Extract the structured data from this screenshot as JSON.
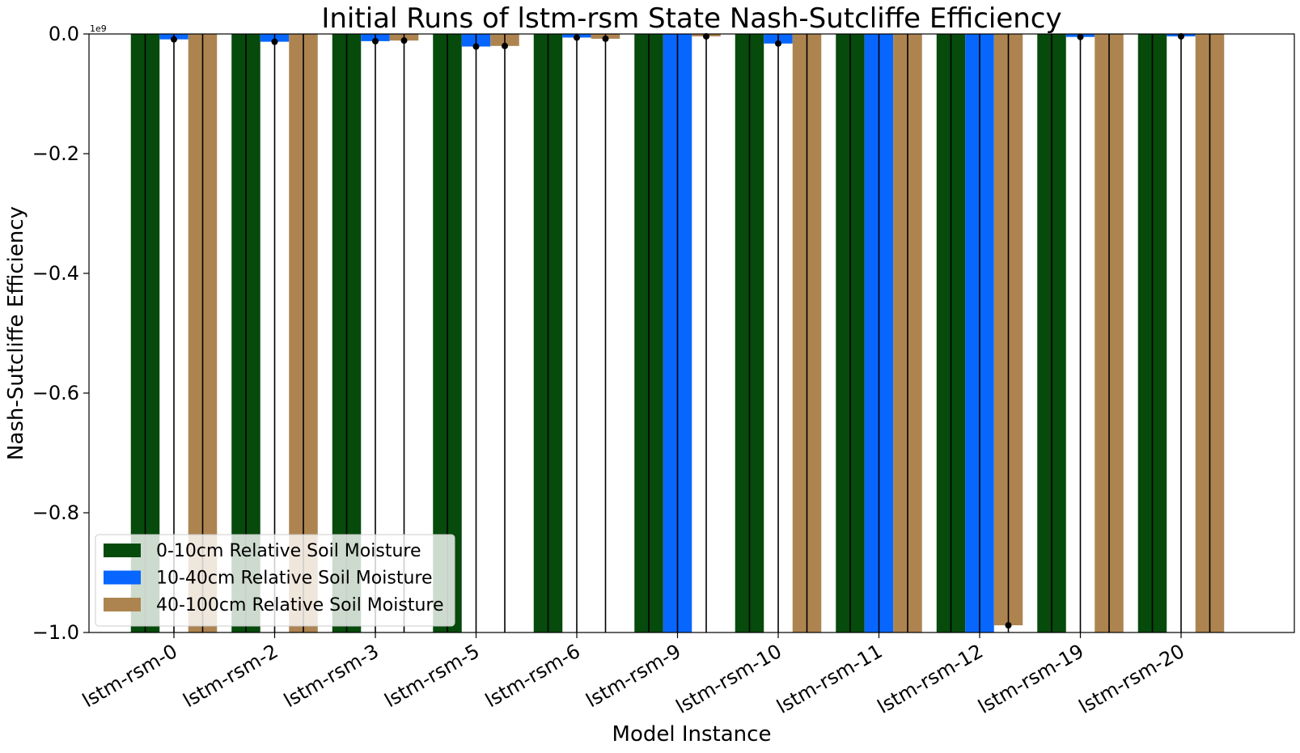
{
  "chart_data": {
    "type": "bar",
    "title": "Initial Runs of lstm-rsm State Nash-Sutcliffe Efficiency",
    "xlabel": "Model Instance",
    "ylabel": "Nash-Sutcliffe Efficiency",
    "y_offset_label": "1e9",
    "ylim": [
      -1.0,
      0.0
    ],
    "yticks": [
      "0.0",
      "−0.2",
      "−0.4",
      "−0.6",
      "−0.8",
      "−1.0"
    ],
    "ytick_values": [
      0.0,
      -0.2,
      -0.4,
      -0.6,
      -0.8,
      -1.0
    ],
    "categories": [
      "lstm-rsm-0",
      "lstm-rsm-2",
      "lstm-rsm-3",
      "lstm-rsm-5",
      "lstm-rsm-6",
      "lstm-rsm-9",
      "lstm-rsm-10",
      "lstm-rsm-11",
      "lstm-rsm-12",
      "lstm-rsm-19",
      "lstm-rsm-20"
    ],
    "series": [
      {
        "name": "0-10cm Relative Soil Moisture",
        "color": "#064a0c",
        "values": [
          -1.0,
          -1.0,
          -1.0,
          -1.0,
          -1.0,
          -1.0,
          -1.0,
          -1.0,
          -1.0,
          -1.0,
          -1.0
        ],
        "points": [
          -1.0,
          -1.0,
          -1.0,
          -1.0,
          -1.0,
          -1.0,
          -1.0,
          -1.0,
          -1.0,
          -1.0,
          -1.0
        ]
      },
      {
        "name": "10-40cm Relative Soil Moisture",
        "color": "#0766fd",
        "values": [
          -0.009,
          -0.013,
          -0.012,
          -0.021,
          -0.006,
          -1.0,
          -0.016,
          -1.0,
          -1.0,
          -0.005,
          -0.004
        ],
        "points": [
          -0.009,
          -0.013,
          -0.012,
          -0.021,
          -0.006,
          -1.0,
          -0.016,
          -1.0,
          -1.0,
          -0.005,
          -0.004
        ]
      },
      {
        "name": "40-100cm Relative Soil Moisture",
        "color": "#ad8450",
        "values": [
          -1.0,
          -1.0,
          -0.011,
          -0.02,
          -0.008,
          -0.004,
          -1.0,
          -1.0,
          -0.988,
          -1.0,
          -1.0
        ],
        "points": [
          -1.0,
          -1.0,
          -0.011,
          -0.02,
          -0.008,
          -0.004,
          -1.0,
          -1.0,
          -0.988,
          -1.0,
          -1.0
        ]
      }
    ],
    "legend_position": "lower-left",
    "grid": false
  }
}
